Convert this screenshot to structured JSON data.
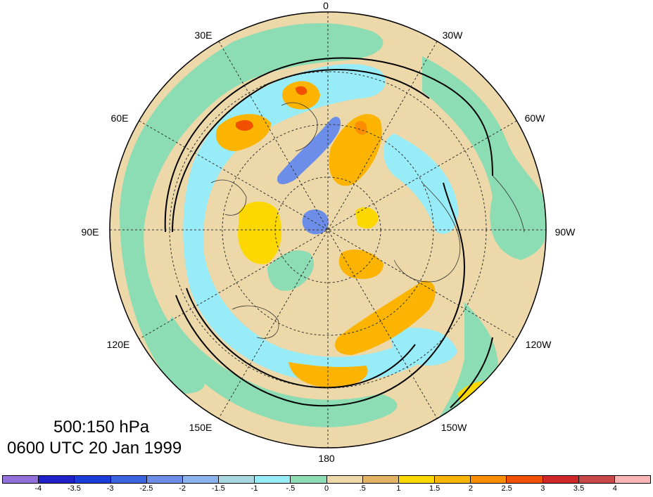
{
  "title": {
    "line1": "500:150 hPa",
    "line2": "0600 UTC 20 Jan 1999"
  },
  "longitude_labels": [
    {
      "name": "lon-0",
      "text": "0"
    },
    {
      "name": "lon-30w",
      "text": "30W"
    },
    {
      "name": "lon-60w",
      "text": "60W"
    },
    {
      "name": "lon-90w",
      "text": "90W"
    },
    {
      "name": "lon-120w",
      "text": "120W"
    },
    {
      "name": "lon-150w",
      "text": "150W"
    },
    {
      "name": "lon-180",
      "text": "180"
    },
    {
      "name": "lon-150e",
      "text": "150E"
    },
    {
      "name": "lon-120e",
      "text": "120E"
    },
    {
      "name": "lon-90e",
      "text": "90E"
    },
    {
      "name": "lon-60e",
      "text": "60E"
    },
    {
      "name": "lon-30e",
      "text": "30E"
    }
  ],
  "colorbar": {
    "labels": [
      "-4",
      "-3.5",
      "-3",
      "-2.5",
      "-2",
      "-1.5",
      "-1",
      "-.5",
      "0",
      ".5",
      "1",
      "1.5",
      "2",
      "2.5",
      "3",
      "3.5",
      "4"
    ],
    "colors": [
      "#9370db",
      "#2020c8",
      "#1c3cd8",
      "#3c64e0",
      "#6c8ee8",
      "#8cb4ec",
      "#a8d8e0",
      "#98ecf8",
      "#8cdcb4",
      "#ecd8a8",
      "#e4b464",
      "#fcd800",
      "#fcb400",
      "#fc8c00",
      "#f05000",
      "#d02828",
      "#c84848",
      "#fcb4b4"
    ]
  },
  "colors": {
    "tan": "#ecd8a8",
    "green": "#8cdcb4",
    "cyan": "#98ecf8",
    "lightblue": "#a8d8e0",
    "midblue": "#6c8ee8",
    "orange": "#fcb400",
    "yellow": "#fcd800",
    "darkorange": "#fc8c00",
    "red": "#f05000",
    "goldtan": "#e4b464"
  }
}
